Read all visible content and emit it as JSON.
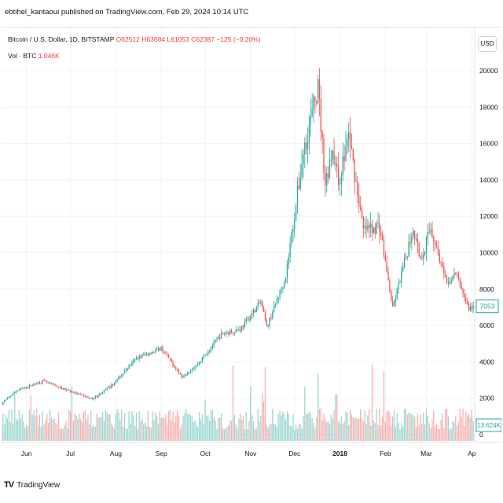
{
  "publisher": "ebtihel_kantaoui published on TradingView.com, Feb 29, 2024 10:14 UTC",
  "legend": {
    "symbol": "Bitcoin / U.S. Dollar, 1D, BITSTAMP",
    "open": "O62512",
    "high": "H63684",
    "low": "L61053",
    "close": "C62387",
    "change": "−125 (−0.20%)",
    "volume_label": "Vol · BTC",
    "volume_value": "1.046K"
  },
  "currency": "USD",
  "brand": "TradingView",
  "colors": {
    "up": "#26a69a",
    "down": "#ef5350",
    "last_price": "#26a69a",
    "grid": "#f0f3fa"
  },
  "chart_data": {
    "type": "candlestick",
    "timeframe": "1D",
    "x_range": [
      "2017-05-15",
      "2018-04-03"
    ],
    "x_tick_labels": [
      "Jun",
      "Jul",
      "Aug",
      "Sep",
      "Oct",
      "Nov",
      "Dec",
      "2018",
      "Feb",
      "Mar",
      "Ap"
    ],
    "x_tick_dates": [
      "2017-06-01",
      "2017-07-01",
      "2017-08-01",
      "2017-09-01",
      "2017-10-01",
      "2017-11-01",
      "2017-12-01",
      "2018-01-01",
      "2018-02-01",
      "2018-03-01",
      "2018-04-01"
    ],
    "y_tick_labels": [
      "20000",
      "18000",
      "16000",
      "14000",
      "12000",
      "10000",
      "8000",
      "6000",
      "4000",
      "2000",
      "0"
    ],
    "y_range": [
      0,
      20000
    ],
    "last_price": "7053",
    "last_volume": "13.624K",
    "price_keypoints": [
      [
        "2017-05-15",
        1700
      ],
      [
        "2017-05-25",
        2400
      ],
      [
        "2017-06-12",
        2950
      ],
      [
        "2017-06-25",
        2550
      ],
      [
        "2017-07-16",
        1950
      ],
      [
        "2017-07-30",
        2750
      ],
      [
        "2017-08-15",
        4200
      ],
      [
        "2017-09-01",
        4750
      ],
      [
        "2017-09-15",
        3200
      ],
      [
        "2017-09-25",
        3800
      ],
      [
        "2017-10-12",
        5500
      ],
      [
        "2017-10-25",
        5800
      ],
      [
        "2017-11-08",
        7300
      ],
      [
        "2017-11-12",
        5900
      ],
      [
        "2017-11-25",
        8700
      ],
      [
        "2017-12-07",
        15500
      ],
      [
        "2017-12-17",
        19100
      ],
      [
        "2017-12-22",
        13800
      ],
      [
        "2017-12-27",
        15800
      ],
      [
        "2017-12-31",
        13800
      ],
      [
        "2018-01-07",
        16500
      ],
      [
        "2018-01-17",
        11200
      ],
      [
        "2018-01-28",
        11500
      ],
      [
        "2018-02-06",
        6900
      ],
      [
        "2018-02-10",
        8200
      ],
      [
        "2018-02-20",
        11400
      ],
      [
        "2018-02-25",
        9600
      ],
      [
        "2018-03-04",
        11400
      ],
      [
        "2018-03-15",
        8200
      ],
      [
        "2018-03-21",
        8900
      ],
      [
        "2018-03-30",
        6900
      ],
      [
        "2018-04-02",
        7053
      ]
    ],
    "volume_range_btc": [
      0,
      110000
    ]
  }
}
